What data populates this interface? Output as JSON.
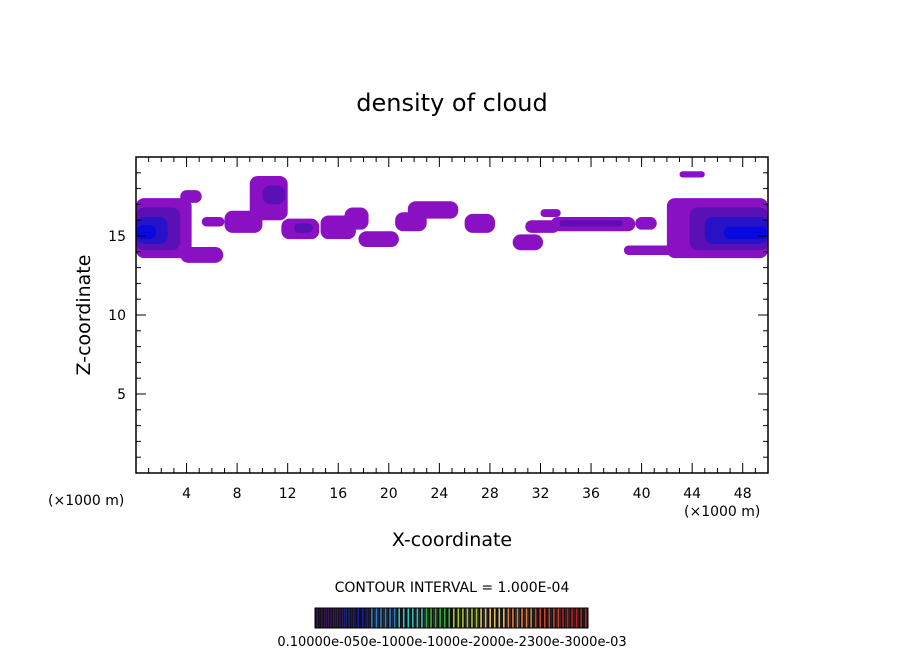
{
  "chart_data": {
    "type": "heatmap",
    "title": "density of cloud",
    "xlabel": "X-coordinate",
    "ylabel": "Z-coordinate",
    "x_unit_left": "(×1000 m)",
    "x_unit_right": "(×1000 m)",
    "xlim": [
      0,
      50
    ],
    "ylim": [
      0,
      20
    ],
    "x_ticks": [
      4,
      8,
      12,
      16,
      20,
      24,
      28,
      32,
      36,
      40,
      44,
      48
    ],
    "y_ticks": [
      5,
      10,
      15
    ],
    "contour_interval_text": "CONTOUR INTERVAL = 1.000E-04",
    "colorbar_labels_text": "0.10000e-050e-1000e-1000e-2000e-2300e-3000e-03",
    "colorbar_min": 0,
    "colorbar_max": 0.003,
    "colorbar_colors": [
      "#3a0e6e",
      "#1a1aa8",
      "#2f7fd0",
      "#35c0c0",
      "#3ab03a",
      "#a8c830",
      "#e8c060",
      "#e08040",
      "#d04030",
      "#c02020"
    ],
    "field_colors": [
      "#8a10c4",
      "#5a10b4",
      "#2812c8",
      "#0a08e0"
    ],
    "regions": [
      {
        "x": [
          0,
          4.4
        ],
        "z": [
          13.6,
          17.4
        ],
        "level": 1
      },
      {
        "x": [
          0,
          3.5
        ],
        "z": [
          14.1,
          16.8
        ],
        "level": 2
      },
      {
        "x": [
          0,
          2.5
        ],
        "z": [
          14.5,
          16.2
        ],
        "level": 3
      },
      {
        "x": [
          0,
          1.6
        ],
        "z": [
          14.8,
          15.7
        ],
        "level": 4
      },
      {
        "x": [
          3.5,
          5.2
        ],
        "z": [
          17.1,
          17.9
        ],
        "level": 1
      },
      {
        "x": [
          3.5,
          6.9
        ],
        "z": [
          13.3,
          14.3
        ],
        "level": 1
      },
      {
        "x": [
          5.2,
          7.0
        ],
        "z": [
          15.6,
          16.2
        ],
        "level": 1
      },
      {
        "x": [
          7.0,
          10.0
        ],
        "z": [
          15.2,
          16.6
        ],
        "level": 1
      },
      {
        "x": [
          9.0,
          12.0
        ],
        "z": [
          16.0,
          18.8
        ],
        "level": 1
      },
      {
        "x": [
          10.0,
          11.8
        ],
        "z": [
          17.0,
          18.2
        ],
        "level": 2
      },
      {
        "x": [
          11.5,
          14.5
        ],
        "z": [
          14.8,
          16.1
        ],
        "level": 1
      },
      {
        "x": [
          12.5,
          14.0
        ],
        "z": [
          15.2,
          15.8
        ],
        "level": 2
      },
      {
        "x": [
          14.6,
          17.4
        ],
        "z": [
          14.8,
          16.3
        ],
        "level": 1
      },
      {
        "x": [
          16.5,
          18.4
        ],
        "z": [
          15.4,
          16.8
        ],
        "level": 1
      },
      {
        "x": [
          17.6,
          20.8
        ],
        "z": [
          14.3,
          15.3
        ],
        "level": 1
      },
      {
        "x": [
          20.5,
          23.0
        ],
        "z": [
          15.3,
          16.5
        ],
        "level": 1
      },
      {
        "x": [
          21.5,
          25.5
        ],
        "z": [
          16.1,
          17.2
        ],
        "level": 1
      },
      {
        "x": [
          26.0,
          28.4
        ],
        "z": [
          15.2,
          16.4
        ],
        "level": 1
      },
      {
        "x": [
          29.8,
          32.2
        ],
        "z": [
          14.1,
          15.1
        ],
        "level": 1
      },
      {
        "x": [
          30.8,
          33.5
        ],
        "z": [
          15.2,
          16.0
        ],
        "level": 1
      },
      {
        "x": [
          32.8,
          39.5
        ],
        "z": [
          15.3,
          16.2
        ],
        "level": 1
      },
      {
        "x": [
          33.5,
          38.5
        ],
        "z": [
          15.6,
          16.0
        ],
        "level": 2
      },
      {
        "x": [
          32.0,
          33.6
        ],
        "z": [
          16.2,
          16.7
        ],
        "level": 1
      },
      {
        "x": [
          39.5,
          41.2
        ],
        "z": [
          15.4,
          16.2
        ],
        "level": 1
      },
      {
        "x": [
          38.6,
          44.0
        ],
        "z": [
          13.8,
          14.4
        ],
        "level": 1
      },
      {
        "x": [
          43.0,
          45.0
        ],
        "z": [
          18.7,
          19.1
        ],
        "level": 1
      },
      {
        "x": [
          42.0,
          50.0
        ],
        "z": [
          13.6,
          17.4
        ],
        "level": 1
      },
      {
        "x": [
          43.8,
          50.0
        ],
        "z": [
          14.1,
          16.8
        ],
        "level": 2
      },
      {
        "x": [
          45.0,
          50.0
        ],
        "z": [
          14.5,
          16.2
        ],
        "level": 3
      },
      {
        "x": [
          46.5,
          50.0
        ],
        "z": [
          14.8,
          15.6
        ],
        "level": 4
      }
    ]
  }
}
